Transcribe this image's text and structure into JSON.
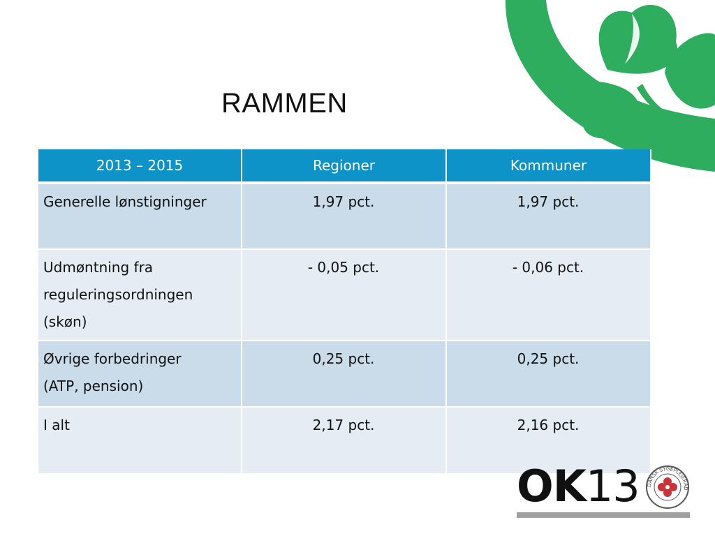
{
  "slide": {
    "title": "RAMMEN"
  },
  "table": {
    "headers": [
      "2013 – 2015",
      "Regioner",
      "Kommuner"
    ],
    "rows": [
      {
        "label_lines": [
          "Generelle lønstigninger"
        ],
        "regioner": "1,97 pct.",
        "kommuner": "1,97 pct."
      },
      {
        "label_lines": [
          "Udmøntning fra",
          "reguleringsordningen",
          "(skøn)"
        ],
        "regioner": "- 0,05 pct.",
        "kommuner": "- 0,06 pct."
      },
      {
        "label_lines": [
          "Øvrige forbedringer",
          "(ATP, pension)"
        ],
        "regioner": "0,25 pct.",
        "kommuner": "0,25 pct."
      },
      {
        "label_lines": [
          "I alt"
        ],
        "regioner": "2,17 pct.",
        "kommuner": "2,16 pct."
      }
    ]
  },
  "logo": {
    "ok_text": "OK",
    "num_text": "13",
    "seal_text": "DANSK SYGEPLEJERÅD"
  },
  "colors": {
    "header_blue": "#0e93c9",
    "row_dark": "#cadcea",
    "row_light": "#e5ecf4",
    "clover_green": "#2ead5f",
    "seal_red": "#c8343a"
  }
}
